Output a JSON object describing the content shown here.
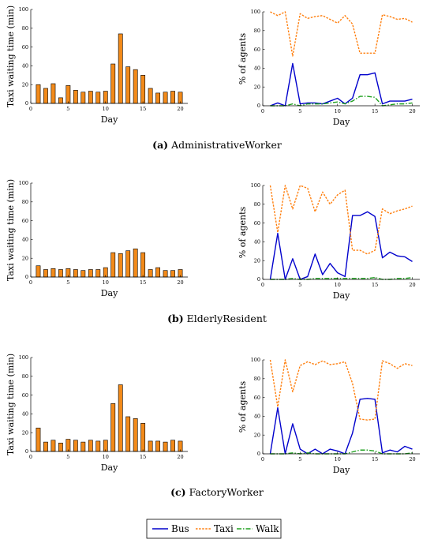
{
  "colors": {
    "bus": "#0000cc",
    "taxi": "#ff7f0e",
    "walk": "#1fa01f",
    "bar_fill": "#f28a1a",
    "bar_stroke": "#000000"
  },
  "legend": {
    "bus": "Bus",
    "taxi": "Taxi",
    "walk": "Walk"
  },
  "panels": [
    {
      "letter": "(a)",
      "name": "AdministrativeWorker"
    },
    {
      "letter": "(b)",
      "name": "ElderlyResident"
    },
    {
      "letter": "(c)",
      "name": "FactoryWorker"
    }
  ],
  "chart_data": [
    {
      "type": "bar",
      "xlabel": "Day",
      "ylabel": "Taxi waiting time (min)",
      "xlim": [
        0,
        21
      ],
      "ylim": [
        0,
        100
      ],
      "xticks": [
        0,
        5,
        10,
        15,
        20
      ],
      "yticks": [
        0,
        20,
        40,
        60,
        80,
        100
      ],
      "x": [
        1,
        2,
        3,
        4,
        5,
        6,
        7,
        8,
        9,
        10,
        11,
        12,
        13,
        14,
        15,
        16,
        17,
        18,
        19,
        20
      ],
      "values": [
        20,
        16,
        21,
        6,
        19,
        14,
        12,
        13,
        12,
        13,
        42,
        74,
        39,
        36,
        30,
        16,
        11,
        12,
        13,
        12
      ]
    },
    {
      "type": "line",
      "xlabel": "Day",
      "ylabel": "% of agents",
      "xlim": [
        0,
        21
      ],
      "ylim": [
        0,
        100
      ],
      "xticks": [
        0,
        5,
        10,
        15,
        20
      ],
      "yticks": [
        0,
        20,
        40,
        60,
        80,
        100
      ],
      "x": [
        1,
        2,
        3,
        4,
        5,
        6,
        7,
        8,
        9,
        10,
        11,
        12,
        13,
        14,
        15,
        16,
        17,
        18,
        19,
        20
      ],
      "series": [
        {
          "name": "Bus",
          "values": [
            0,
            3,
            0,
            45,
            2,
            3,
            3,
            2,
            5,
            8,
            2,
            8,
            33,
            33,
            35,
            2,
            5,
            5,
            5,
            7
          ]
        },
        {
          "name": "Taxi",
          "values": [
            100,
            96,
            100,
            53,
            98,
            93,
            95,
            96,
            92,
            88,
            96,
            87,
            56,
            56,
            56,
            97,
            95,
            92,
            93,
            89
          ]
        },
        {
          "name": "Walk",
          "values": [
            0,
            0,
            0,
            2,
            0,
            2,
            2,
            2,
            3,
            4,
            2,
            5,
            10,
            10,
            9,
            0,
            1,
            2,
            2,
            3
          ]
        }
      ]
    },
    {
      "type": "bar",
      "xlabel": "Day",
      "ylabel": "Taxi waiting time (min)",
      "xlim": [
        0,
        21
      ],
      "ylim": [
        0,
        100
      ],
      "xticks": [
        0,
        5,
        10,
        15,
        20
      ],
      "yticks": [
        0,
        20,
        40,
        60,
        80,
        100
      ],
      "x": [
        1,
        2,
        3,
        4,
        5,
        6,
        7,
        8,
        9,
        10,
        11,
        12,
        13,
        14,
        15,
        16,
        17,
        18,
        19,
        20
      ],
      "values": [
        12,
        8,
        9,
        8,
        9,
        8,
        7,
        8,
        8,
        10,
        26,
        25,
        28,
        30,
        26,
        8,
        10,
        7,
        7,
        8
      ]
    },
    {
      "type": "line",
      "xlabel": "Day",
      "ylabel": "% of agents",
      "xlim": [
        0,
        21
      ],
      "ylim": [
        0,
        100
      ],
      "xticks": [
        0,
        5,
        10,
        15,
        20
      ],
      "yticks": [
        0,
        20,
        40,
        60,
        80,
        100
      ],
      "x": [
        1,
        2,
        3,
        4,
        5,
        6,
        7,
        8,
        9,
        10,
        11,
        12,
        13,
        14,
        15,
        16,
        17,
        18,
        19,
        20
      ],
      "series": [
        {
          "name": "Bus",
          "values": [
            0,
            49,
            0,
            22,
            0,
            3,
            27,
            5,
            17,
            7,
            3,
            68,
            68,
            72,
            67,
            23,
            29,
            25,
            24,
            19
          ]
        },
        {
          "name": "Taxi",
          "values": [
            100,
            50,
            100,
            75,
            100,
            97,
            72,
            93,
            80,
            90,
            95,
            31,
            31,
            27,
            31,
            75,
            70,
            73,
            75,
            78
          ]
        },
        {
          "name": "Walk",
          "values": [
            0,
            0,
            0,
            1,
            0,
            0,
            1,
            1,
            1,
            1,
            1,
            1,
            1,
            1,
            2,
            0,
            0,
            1,
            1,
            2
          ]
        }
      ]
    },
    {
      "type": "bar",
      "xlabel": "Day",
      "ylabel": "Taxi waiting time (min)",
      "xlim": [
        0,
        21
      ],
      "ylim": [
        0,
        100
      ],
      "xticks": [
        0,
        5,
        10,
        15,
        20
      ],
      "yticks": [
        0,
        20,
        40,
        60,
        80,
        100
      ],
      "x": [
        1,
        2,
        3,
        4,
        5,
        6,
        7,
        8,
        9,
        10,
        11,
        12,
        13,
        14,
        15,
        16,
        17,
        18,
        19,
        20
      ],
      "values": [
        25,
        10,
        12,
        9,
        13,
        12,
        10,
        12,
        11,
        12,
        51,
        71,
        37,
        35,
        30,
        11,
        11,
        10,
        12,
        11
      ]
    },
    {
      "type": "line",
      "xlabel": "Day",
      "ylabel": "% of agents",
      "xlim": [
        0,
        21
      ],
      "ylim": [
        0,
        100
      ],
      "xticks": [
        0,
        5,
        10,
        15,
        20
      ],
      "yticks": [
        0,
        20,
        40,
        60,
        80,
        100
      ],
      "x": [
        1,
        2,
        3,
        4,
        5,
        6,
        7,
        8,
        9,
        10,
        11,
        12,
        13,
        14,
        15,
        16,
        17,
        18,
        19,
        20
      ],
      "series": [
        {
          "name": "Bus",
          "values": [
            0,
            49,
            0,
            32,
            5,
            0,
            5,
            0,
            5,
            3,
            0,
            22,
            58,
            59,
            58,
            1,
            4,
            2,
            8,
            5
          ]
        },
        {
          "name": "Taxi",
          "values": [
            100,
            50,
            100,
            66,
            94,
            98,
            95,
            99,
            95,
            96,
            98,
            75,
            37,
            36,
            37,
            99,
            96,
            91,
            96,
            94
          ]
        },
        {
          "name": "Walk",
          "values": [
            0,
            0,
            0,
            1,
            0,
            1,
            0,
            0,
            0,
            0,
            0,
            2,
            4,
            4,
            3,
            0,
            0,
            0,
            0,
            1
          ]
        }
      ]
    }
  ]
}
